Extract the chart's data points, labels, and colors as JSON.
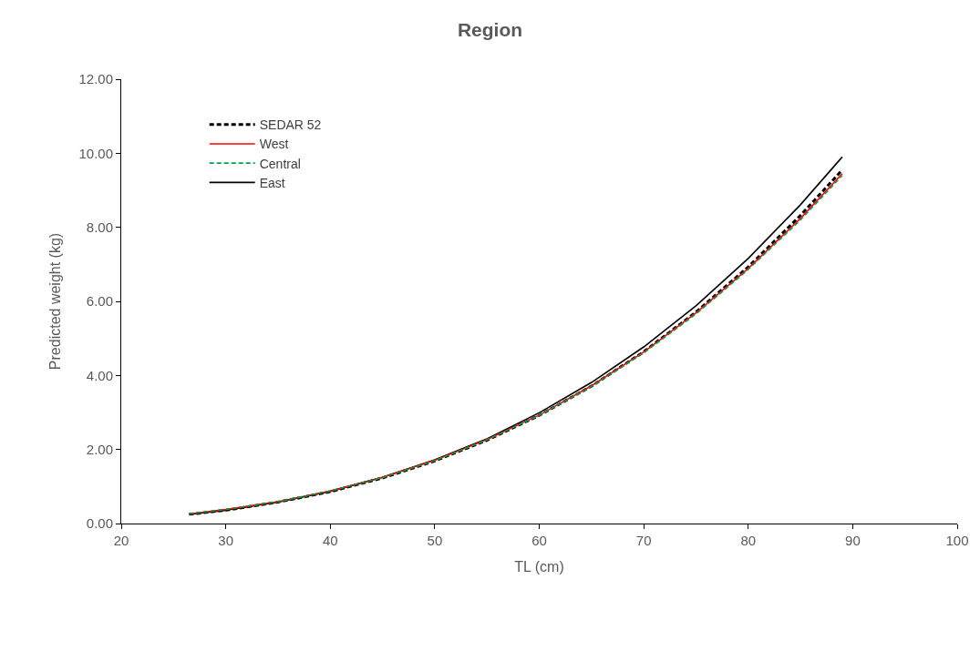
{
  "chart_data": {
    "type": "line",
    "title": "Region",
    "xlabel": "TL (cm)",
    "ylabel": "Predicted weight (kg)",
    "x": [
      26.5,
      30,
      35,
      40,
      45,
      50,
      55,
      60,
      65,
      70,
      75,
      80,
      85,
      89
    ],
    "series": [
      {
        "name": "SEDAR 52",
        "color": "#000000",
        "line_style": "dashed",
        "values": [
          0.25,
          0.36,
          0.58,
          0.86,
          1.23,
          1.69,
          2.25,
          2.92,
          3.71,
          4.64,
          5.71,
          6.93,
          8.32,
          9.55
        ]
      },
      {
        "name": "West",
        "color": "#ff0000",
        "line_style": "solid",
        "values": [
          0.26,
          0.38,
          0.59,
          0.88,
          1.25,
          1.71,
          2.27,
          2.93,
          3.72,
          4.63,
          5.69,
          6.89,
          8.24,
          9.45
        ]
      },
      {
        "name": "Central",
        "color": "#00a04a",
        "line_style": "dashed",
        "values": [
          0.26,
          0.38,
          0.59,
          0.88,
          1.24,
          1.7,
          2.26,
          2.92,
          3.7,
          4.61,
          5.66,
          6.86,
          8.2,
          9.4
        ]
      },
      {
        "name": "East",
        "color": "#000000",
        "line_style": "solid",
        "values": [
          0.25,
          0.36,
          0.58,
          0.87,
          1.25,
          1.72,
          2.29,
          2.99,
          3.81,
          4.77,
          5.88,
          7.16,
          8.61,
          9.9
        ]
      }
    ],
    "xlim": [
      20,
      100
    ],
    "xticks": [
      20,
      30,
      40,
      50,
      60,
      70,
      80,
      90,
      100
    ],
    "ylim": [
      0,
      12
    ],
    "yticks": [
      {
        "value": 0,
        "label": "0.00"
      },
      {
        "value": 2,
        "label": "2.00"
      },
      {
        "value": 4,
        "label": "4.00"
      },
      {
        "value": 6,
        "label": "6.00"
      },
      {
        "value": 8,
        "label": "8.00"
      },
      {
        "value": 10,
        "label": "10.00"
      },
      {
        "value": 12,
        "label": "12.00"
      }
    ],
    "legend": "top left",
    "marker": "none"
  }
}
